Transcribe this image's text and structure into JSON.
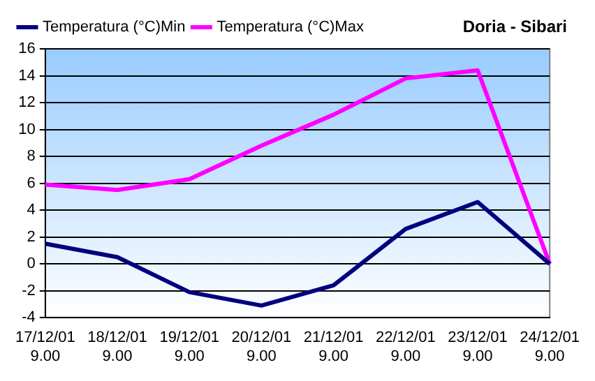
{
  "chart_data": {
    "type": "line",
    "title": "Doria - Sibari",
    "categories": [
      "17/12/01 9.00",
      "18/12/01 9.00",
      "19/12/01 9.00",
      "20/12/01 9.00",
      "21/12/01 9.00",
      "22/12/01 9.00",
      "23/12/01 9.00",
      "24/12/01 9.00"
    ],
    "series": [
      {
        "name": "Temperatura (°C)Min",
        "color": "#000080",
        "values": [
          1.5,
          0.5,
          -2.1,
          -3.1,
          -1.6,
          2.6,
          4.6,
          0
        ]
      },
      {
        "name": "Temperatura (°C)Max",
        "color": "#ff00ff",
        "values": [
          5.9,
          5.5,
          6.3,
          8.8,
          11.1,
          13.8,
          14.4,
          0
        ]
      }
    ],
    "ylim": [
      -4,
      16
    ],
    "yticks": [
      -4,
      -2,
      0,
      2,
      4,
      6,
      8,
      10,
      12,
      14,
      16
    ],
    "grid": "y",
    "legend": "top left",
    "marker": "none",
    "line_style": "solid"
  }
}
